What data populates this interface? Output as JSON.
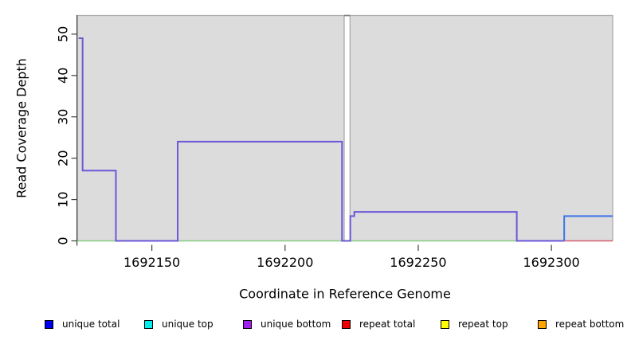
{
  "chart_data": {
    "type": "line",
    "subtype": "step-coverage",
    "title": "",
    "xlabel": "Coordinate in Reference Genome",
    "ylabel": "Read Coverage Depth",
    "x_range": [
      1692122,
      1692323
    ],
    "y_range": [
      0,
      54.5
    ],
    "x_ticks": [
      1692150,
      1692200,
      1692250,
      1692300
    ],
    "y_ticks": [
      0,
      10,
      20,
      30,
      40,
      50
    ],
    "grid": false,
    "plot_bg_color": "#dcdcdc",
    "plot_bg_border_color": "#ababab",
    "gap_top_border_color": "#7f7f7f",
    "axis_color": "#404040",
    "background_regions": [
      {
        "start": 1692122,
        "end": 1692222.2
      },
      {
        "start": 1692224.4,
        "end": 1692323
      }
    ],
    "series": [
      {
        "name": "baseline-green",
        "color": "#86ca86",
        "width": 1.5,
        "points": [
          [
            1692122,
            0
          ],
          [
            1692287,
            0
          ]
        ]
      },
      {
        "name": "unique-bottom-coverage",
        "color": "#6a58d8",
        "width": 2,
        "points": [
          [
            1692122.5,
            49
          ],
          [
            1692124,
            49
          ],
          [
            1692124,
            17
          ],
          [
            1692136.5,
            17
          ],
          [
            1692136.5,
            0
          ],
          [
            1692159.7,
            0
          ],
          [
            1692159.7,
            24
          ],
          [
            1692221.4,
            24
          ],
          [
            1692221.4,
            0
          ],
          [
            1692224.5,
            0
          ],
          [
            1692224.5,
            6
          ],
          [
            1692226,
            6
          ],
          [
            1692226,
            7
          ],
          [
            1692287,
            7
          ],
          [
            1692287,
            0
          ],
          [
            1692304.8,
            0
          ]
        ]
      },
      {
        "name": "repeat-total-coverage",
        "color": "#d75f6e",
        "width": 1.6,
        "points": [
          [
            1692304.8,
            0
          ],
          [
            1692323,
            0
          ]
        ]
      },
      {
        "name": "unique-total-coverage",
        "color": "#3d74e8",
        "width": 2,
        "points": [
          [
            1692304.8,
            0
          ],
          [
            1692304.8,
            6
          ],
          [
            1692323,
            6
          ]
        ]
      }
    ],
    "legend_position": "bottom",
    "legend": [
      {
        "label": "unique total",
        "color": "#0000ee"
      },
      {
        "label": "unique top",
        "color": "#00eeee"
      },
      {
        "label": "unique bottom",
        "color": "#a020f0"
      },
      {
        "label": "repeat total",
        "color": "#ee0000"
      },
      {
        "label": "repeat top",
        "color": "#ffff00"
      },
      {
        "label": "repeat bottom",
        "color": "#ffa500"
      }
    ]
  }
}
